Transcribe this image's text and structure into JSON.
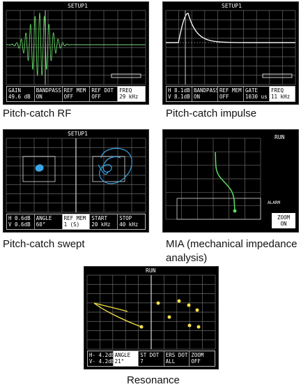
{
  "panels": {
    "rf": {
      "title": "SETUP1",
      "caption": "Pitch-catch RF",
      "status": [
        {
          "l1": "GAIN",
          "l2": "49.6 dB",
          "hl": false
        },
        {
          "l1": "BANDPASS",
          "l2": "ON",
          "hl": false
        },
        {
          "l1": "REF MEM",
          "l2": "OFF",
          "hl": false
        },
        {
          "l1": "REF DOT",
          "l2": "OFF",
          "hl": false
        },
        {
          "l1": "FREQ",
          "l2": "29 kHz",
          "hl": true
        }
      ]
    },
    "impulse": {
      "title": "SETUP1",
      "caption": "Pitch-catch impulse",
      "status": [
        {
          "l1": "H  8.1dB",
          "l2": "V  8.1dB",
          "hl": false
        },
        {
          "l1": "BANDPASS",
          "l2": "ON",
          "hl": false
        },
        {
          "l1": "REF MEM",
          "l2": "OFF",
          "hl": false
        },
        {
          "l1": "GATE",
          "l2": "1030 us",
          "hl": false
        },
        {
          "l1": "FREQ",
          "l2": "11 kHz",
          "hl": true
        }
      ]
    },
    "swept": {
      "title": "SETUP1",
      "caption": "Pitch-catch swept",
      "status": [
        {
          "l1": "H  0.6dB",
          "l2": "V  0.6dB",
          "hl": false
        },
        {
          "l1": "ANGLE",
          "l2": "60°",
          "hl": false
        },
        {
          "l1": "REF MEM",
          "l2": "1 (S)",
          "hl": true
        },
        {
          "l1": "START",
          "l2": "20 kHz",
          "hl": false
        },
        {
          "l1": "STOP",
          "l2": "40 kHz",
          "hl": false
        }
      ]
    },
    "mia": {
      "run_label": "RUN",
      "alarm_label": "ALARM",
      "zoom_l1": "ZOOM",
      "zoom_l2": "ON",
      "caption_line1": "MIA (mechanical impedance",
      "caption_line2": "analysis)"
    },
    "resonance": {
      "title": "RUN",
      "caption": "Resonance",
      "status": [
        {
          "l1": "H- 4.2dB",
          "l2": "V- 4.2dB",
          "hl": false
        },
        {
          "l1": "ANGLE",
          "l2": "21°",
          "hl": true
        },
        {
          "l1": "ST DOT",
          "l2": "7",
          "hl": false
        },
        {
          "l1": "ERS DOT",
          "l2": "ALL",
          "hl": false
        },
        {
          "l1": "ZOOM",
          "l2": "OFF",
          "hl": false
        }
      ]
    }
  },
  "colors": {
    "green": "#5fd35f",
    "cyan": "#3aa6e8",
    "yellow": "#f4e04a",
    "grid": "#6a6a6a"
  }
}
